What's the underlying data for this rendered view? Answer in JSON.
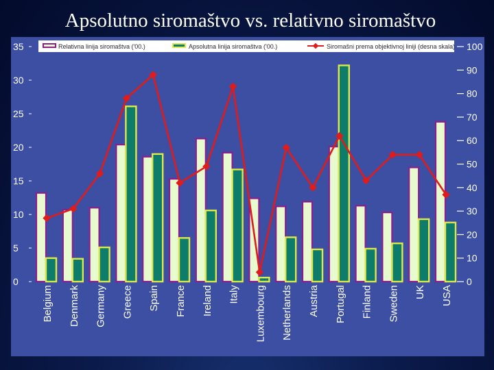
{
  "slide": {
    "title": "Apsolutno siromaštvo vs. relativno siromaštvo"
  },
  "colors": {
    "background": "#0a1a4a",
    "plot": "#3c4fa2",
    "relative_fill": "#e7fbcf",
    "relative_border": "#8c1d8c",
    "absolute_fill": "#0d7c6b",
    "absolute_border": "#dfe84a",
    "line": "#e01b1b"
  },
  "chart_data": {
    "type": "bar",
    "title": "Apsolutno siromaštvo vs. relativno siromaštvo",
    "categories": [
      "Belgium",
      "Denmark",
      "Germany",
      "Greece",
      "Spain",
      "France",
      "Ireland",
      "Italy",
      "Luxembourg",
      "Netherlands",
      "Austria",
      "Portugal",
      "Finland",
      "Sweden",
      "UK",
      "USA"
    ],
    "series": [
      {
        "name": "Relativna linija siromaštva ('00.)",
        "axis": "left",
        "kind": "bar",
        "values": [
          13.2,
          10.7,
          11.0,
          20.4,
          18.6,
          15.3,
          21.3,
          19.2,
          12.4,
          11.2,
          11.9,
          20.1,
          11.3,
          10.3,
          17.0,
          23.8
        ]
      },
      {
        "name": "Apsolutna linija siromaštva ('00.)",
        "axis": "left",
        "kind": "bar",
        "values": [
          3.5,
          3.4,
          5.1,
          26.1,
          19.0,
          6.5,
          10.6,
          16.7,
          0.6,
          6.6,
          4.8,
          32.2,
          4.9,
          5.7,
          9.3,
          8.8
        ]
      },
      {
        "name": "Siromašni prema objektivnoj liniji (desna skala)",
        "axis": "right",
        "kind": "line",
        "values": [
          27,
          31,
          46,
          78,
          88,
          42,
          49,
          83,
          4,
          57,
          40,
          62,
          43,
          54,
          54,
          37
        ]
      }
    ],
    "left_axis": {
      "ylim": [
        0,
        35
      ],
      "ticks": [
        0,
        5,
        10,
        15,
        20,
        25,
        30,
        35
      ]
    },
    "right_axis": {
      "ylim": [
        0,
        100
      ],
      "ticks": [
        0,
        10,
        20,
        30,
        40,
        50,
        60,
        70,
        80,
        90,
        100
      ]
    },
    "legend": {
      "position": "top"
    },
    "grid": false
  }
}
